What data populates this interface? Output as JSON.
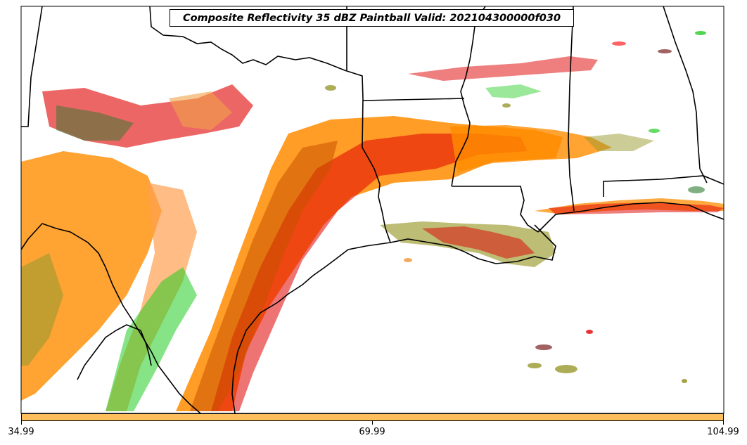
{
  "map": {
    "title": "Composite Reflectivity 35 dBZ Paintball Valid: 202104300000f030",
    "colorbar": {
      "color": "#ffbf5c",
      "ticks": [
        "34.99",
        "69.99",
        "104.99"
      ]
    },
    "member_colors": [
      "#ff9933",
      "#ff8c00",
      "#f07b00",
      "#e6a030",
      "#e00000",
      "#ff2020",
      "#22cc22",
      "#2d7a2d",
      "#99992d",
      "#7a2020",
      "#444444",
      "#f2a24a"
    ]
  }
}
